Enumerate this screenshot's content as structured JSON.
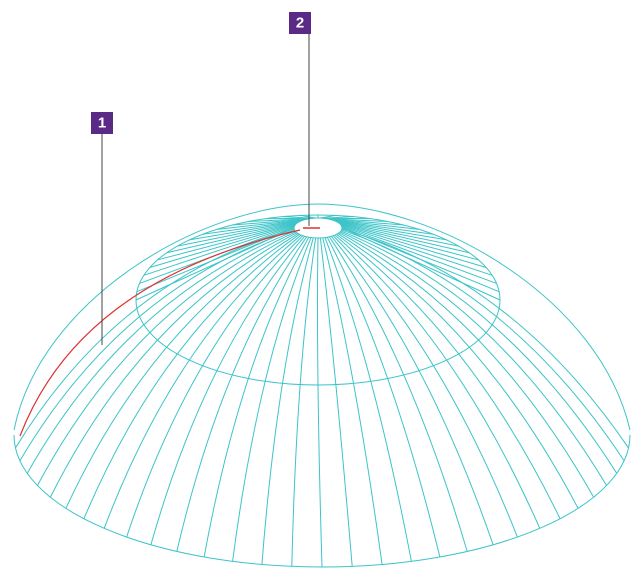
{
  "callouts": [
    {
      "label": "1"
    },
    {
      "label": "2"
    }
  ]
}
